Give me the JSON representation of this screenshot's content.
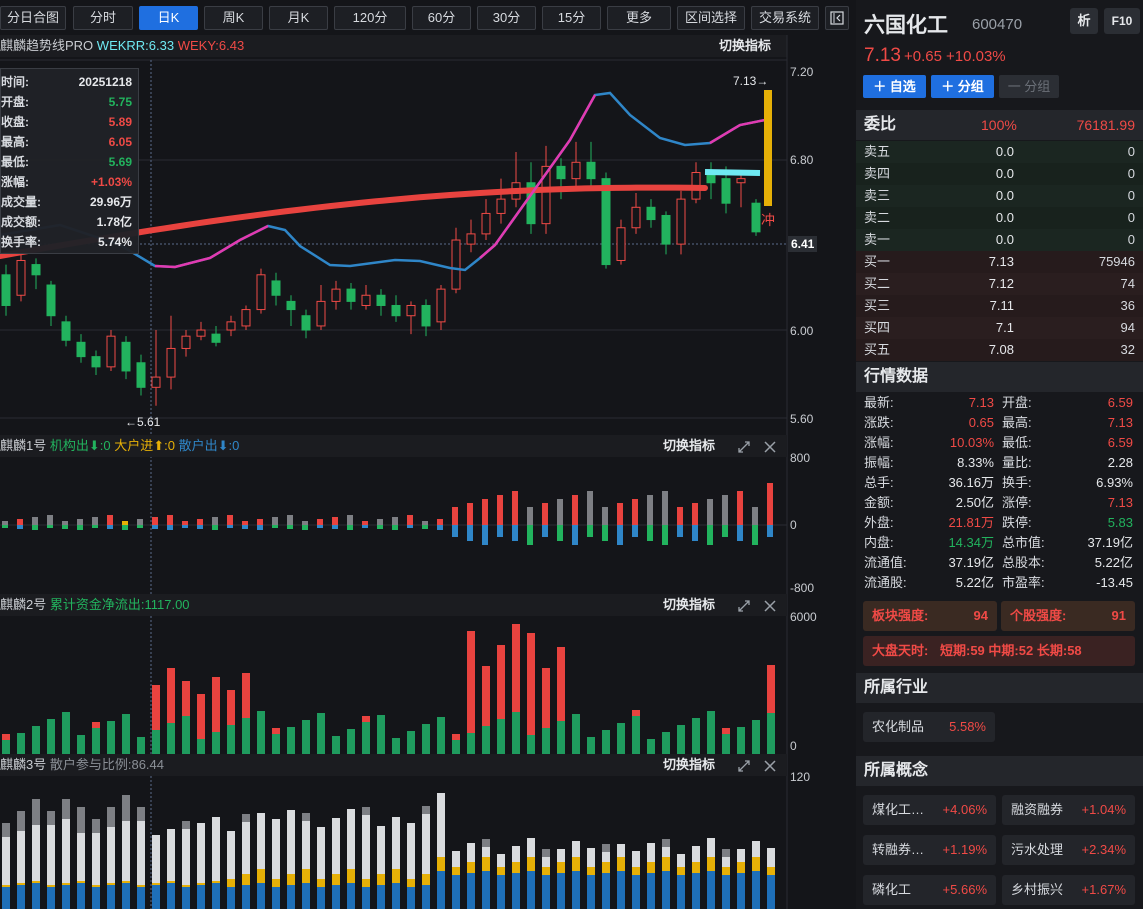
{
  "toolbar": {
    "buttons": [
      "分日合图",
      "分时",
      "日K",
      "周K",
      "月K",
      "120分",
      "60分",
      "30分",
      "15分",
      "更多",
      "区间选择",
      "交易系统"
    ],
    "active": "日K"
  },
  "main_panel": {
    "title": "麒麟趋势线PRO",
    "wekrr": "WEKRR:6.33",
    "weky": "WEKY:6.43",
    "switch_label": "切换指标",
    "price_axis": [
      "7.20",
      "6.80",
      "6.41",
      "6.00",
      "5.60"
    ],
    "high_marker": "7.13→",
    "low_marker": "←5.61",
    "limit_up_marker": "冲"
  },
  "tooltip": {
    "rows": [
      {
        "label": "时间:",
        "value": "20251218",
        "color": "white"
      },
      {
        "label": "开盘:",
        "value": "5.75",
        "color": "green"
      },
      {
        "label": "收盘:",
        "value": "5.89",
        "color": "red"
      },
      {
        "label": "最高:",
        "value": "6.05",
        "color": "red"
      },
      {
        "label": "最低:",
        "value": "5.69",
        "color": "green"
      },
      {
        "label": "涨幅:",
        "value": "+1.03%",
        "color": "red"
      },
      {
        "label": "成交量:",
        "value": "29.96万",
        "color": "white"
      },
      {
        "label": "成交额:",
        "value": "1.78亿",
        "color": "white"
      },
      {
        "label": "换手率:",
        "value": "5.74%",
        "color": "white"
      }
    ]
  },
  "panel1": {
    "title": "麒麟1号",
    "item1": "机构出⬇:0",
    "item2": "大户进⬆:0",
    "item3": "散户出⬇:0",
    "switch_label": "切换指标",
    "axis": [
      "800",
      "0",
      "-800"
    ]
  },
  "panel2": {
    "title": "麒麟2号",
    "item1": "累计资金净流出:1117.00",
    "switch_label": "切换指标",
    "axis": [
      "6000",
      "0"
    ]
  },
  "panel3": {
    "title": "麒麟3号",
    "item1": "散户参与比例:86.44",
    "switch_label": "切换指标",
    "axis": [
      "120"
    ]
  },
  "stock": {
    "name": "六国化工",
    "code": "600470",
    "analyze_btn": "析",
    "f10_btn": "F10",
    "price": "7.13",
    "change": "+0.65",
    "pct": "+10.03%",
    "add_watch": "＋ 自选",
    "add_group": "＋ 分组",
    "remove_group": "一 分组"
  },
  "weibi": {
    "label": "委比",
    "pct": "100%",
    "diff": "76181.99"
  },
  "orderbook": [
    {
      "label": "卖五",
      "price": "0.0",
      "vol": "0",
      "side": "sell",
      "color": "white"
    },
    {
      "label": "卖四",
      "price": "0.0",
      "vol": "0",
      "side": "sell",
      "color": "white"
    },
    {
      "label": "卖三",
      "price": "0.0",
      "vol": "0",
      "side": "sell",
      "color": "white"
    },
    {
      "label": "卖二",
      "price": "0.0",
      "vol": "0",
      "side": "sell",
      "color": "white"
    },
    {
      "label": "卖一",
      "price": "0.0",
      "vol": "0",
      "side": "sell",
      "color": "white"
    },
    {
      "label": "买一",
      "price": "7.13",
      "vol": "75946",
      "side": "buy",
      "color": "white"
    },
    {
      "label": "买二",
      "price": "7.12",
      "vol": "74",
      "side": "buy",
      "color": "white"
    },
    {
      "label": "买三",
      "price": "7.11",
      "vol": "36",
      "side": "buy",
      "color": "white"
    },
    {
      "label": "买四",
      "price": "7.1",
      "vol": "94",
      "side": "buy",
      "color": "white"
    },
    {
      "label": "买五",
      "price": "7.08",
      "vol": "32",
      "side": "buy",
      "color": "white"
    }
  ],
  "market": {
    "title": "行情数据",
    "rows": [
      {
        "k1": "最新:",
        "v1": "7.13",
        "c1": "red",
        "k2": "开盘:",
        "v2": "6.59",
        "c2": "red"
      },
      {
        "k1": "涨跌:",
        "v1": "0.65",
        "c1": "red",
        "k2": "最高:",
        "v2": "7.13",
        "c2": "red"
      },
      {
        "k1": "涨幅:",
        "v1": "10.03%",
        "c1": "red",
        "k2": "最低:",
        "v2": "6.59",
        "c2": "red"
      },
      {
        "k1": "振幅:",
        "v1": "8.33%",
        "c1": "white",
        "k2": "量比:",
        "v2": "2.28",
        "c2": "white"
      },
      {
        "k1": "总手:",
        "v1": "36.16万",
        "c1": "white",
        "k2": "换手:",
        "v2": "6.93%",
        "c2": "white"
      },
      {
        "k1": "金额:",
        "v1": "2.50亿",
        "c1": "white",
        "k2": "涨停:",
        "v2": "7.13",
        "c2": "red"
      },
      {
        "k1": "外盘:",
        "v1": "21.81万",
        "c1": "red",
        "k2": "跌停:",
        "v2": "5.83",
        "c2": "green"
      },
      {
        "k1": "内盘:",
        "v1": "14.34万",
        "c1": "green",
        "k2": "总市值:",
        "v2": "37.19亿",
        "c2": "white"
      },
      {
        "k1": "流通值:",
        "v1": "37.19亿",
        "c1": "white",
        "k2": "总股本:",
        "v2": "5.22亿",
        "c2": "white"
      },
      {
        "k1": "流通股:",
        "v1": "5.22亿",
        "c1": "white",
        "k2": "市盈率:",
        "v2": "-13.45",
        "c2": "white"
      }
    ]
  },
  "strength": {
    "sector_label": "板块强度:",
    "sector_value": "94",
    "stock_label": "个股强度:",
    "stock_value": "91",
    "market_sky": "大盘天时:",
    "short_label": "短期:",
    "short_value": "59",
    "mid_label": "中期:",
    "mid_value": "52",
    "long_label": "长期:",
    "long_value": "58"
  },
  "industry": {
    "title": "所属行业",
    "name": "农化制品",
    "change": "5.58%"
  },
  "concepts": {
    "title": "所属概念",
    "items": [
      {
        "name": "煤化工…",
        "change": "+4.06%"
      },
      {
        "name": "融资融券",
        "change": "+1.04%"
      },
      {
        "name": "转融券…",
        "change": "+1.19%"
      },
      {
        "name": "污水处理",
        "change": "+2.34%"
      },
      {
        "name": "磷化工",
        "change": "+5.66%"
      },
      {
        "name": "乡村振兴",
        "change": "+1.67%"
      }
    ]
  },
  "colors": {
    "up": "#f04a46",
    "down": "#22b35e",
    "accent": "#1f6fe0",
    "ma_red": "#e8433f",
    "ma_blue": "#2f86c8",
    "ma_pink": "#e23ab0",
    "ma_cyan": "#6fe9f2",
    "limit_bar": "#e6b007"
  }
}
